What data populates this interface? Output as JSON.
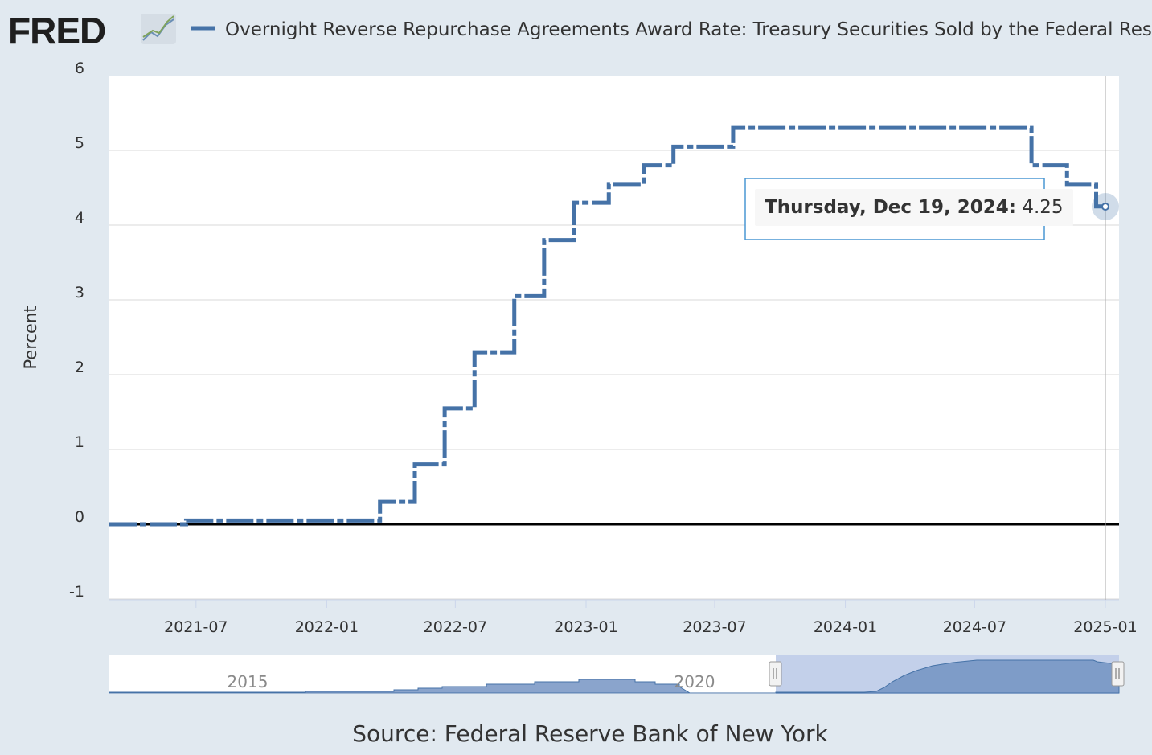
{
  "header": {
    "logo_text": "FRED",
    "logo_icon": "line-chart-icon",
    "series_title": "Overnight Reverse Repurchase Agreements Award Rate: Treasury Securities Sold by the Federal Reserve"
  },
  "footer": {
    "source": "Source: Federal Reserve Bank of New York"
  },
  "tooltip": {
    "date": "Thursday, Dec 19, 2024:",
    "value": "4.25"
  },
  "navigator": {
    "labels": [
      "2015",
      "2020"
    ]
  },
  "colors": {
    "line": "#4572a7",
    "background": "#e1e9f0",
    "plot": "#ffffff",
    "grid": "#d8d8d8",
    "navigator_fill": "#8aa4cc",
    "navigator_selection": "#b8c8e6"
  },
  "chart_data": {
    "type": "line",
    "title": "Overnight Reverse Repurchase Agreements Award Rate: Treasury Securities Sold by the Federal Reserve",
    "xlabel": "",
    "ylabel": "Percent",
    "ylim": [
      -1,
      6
    ],
    "yticks": [
      "-1",
      "0",
      "1",
      "2",
      "3",
      "4",
      "5",
      "6"
    ],
    "xticks": [
      "2021-07",
      "2022-01",
      "2022-07",
      "2023-01",
      "2023-07",
      "2024-01",
      "2024-07",
      "2025-01"
    ],
    "xrange": [
      "2021-03-01",
      "2025-01-01"
    ],
    "series": [
      {
        "name": "Overnight Reverse Repurchase Agreements Award Rate",
        "step": true,
        "points": [
          {
            "date": "2021-03-01",
            "value": 0.0
          },
          {
            "date": "2021-06-17",
            "value": 0.05
          },
          {
            "date": "2022-03-17",
            "value": 0.3
          },
          {
            "date": "2022-05-05",
            "value": 0.8
          },
          {
            "date": "2022-06-16",
            "value": 1.55
          },
          {
            "date": "2022-07-28",
            "value": 2.3
          },
          {
            "date": "2022-09-22",
            "value": 3.05
          },
          {
            "date": "2022-11-03",
            "value": 3.8
          },
          {
            "date": "2022-12-15",
            "value": 4.3
          },
          {
            "date": "2023-02-02",
            "value": 4.55
          },
          {
            "date": "2023-03-23",
            "value": 4.8
          },
          {
            "date": "2023-05-04",
            "value": 5.05
          },
          {
            "date": "2023-07-27",
            "value": 5.3
          },
          {
            "date": "2024-09-19",
            "value": 4.8
          },
          {
            "date": "2024-11-08",
            "value": 4.55
          },
          {
            "date": "2024-12-19",
            "value": 4.25
          },
          {
            "date": "2024-12-31",
            "value": 4.25
          }
        ]
      }
    ],
    "highlight": {
      "date": "2024-12-19",
      "value": 4.25
    }
  }
}
